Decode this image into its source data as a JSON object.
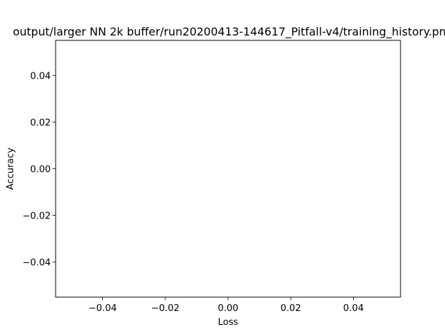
{
  "chart_data": {
    "type": "line",
    "title": "output/larger NN 2k buffer/run20200413-144617_Pitfall-v4/training_history.pn",
    "xlabel": "Loss",
    "ylabel": "Accuracy",
    "xlim": [
      -0.055,
      0.055
    ],
    "ylim": [
      -0.055,
      0.055
    ],
    "x_ticks": [
      -0.04,
      -0.02,
      0.0,
      0.02,
      0.04
    ],
    "x_tick_labels": [
      "−0.04",
      "−0.02",
      "0.00",
      "0.02",
      "0.04"
    ],
    "y_ticks": [
      -0.04,
      -0.02,
      0.0,
      0.02,
      0.04
    ],
    "y_tick_labels": [
      "−0.04",
      "−0.02",
      "0.00",
      "0.02",
      "0.04"
    ],
    "grid": false,
    "series": []
  }
}
